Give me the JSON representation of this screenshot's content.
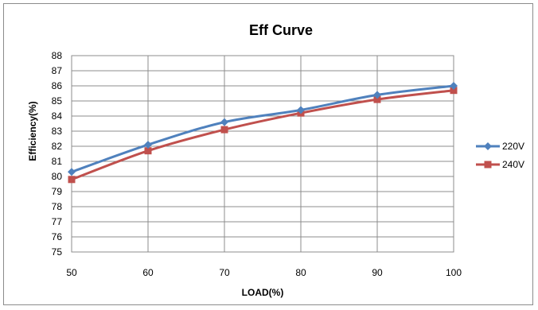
{
  "chart_data": {
    "type": "line",
    "title": "Eff Curve",
    "xlabel": "LOAD(%)",
    "ylabel": "Efficiency(%)",
    "x": [
      50,
      60,
      70,
      80,
      90,
      100
    ],
    "xlim": [
      50,
      100
    ],
    "ylim": [
      75,
      88
    ],
    "x_ticks": [
      50,
      60,
      70,
      80,
      90,
      100
    ],
    "y_ticks": [
      75,
      76,
      77,
      78,
      79,
      80,
      81,
      82,
      83,
      84,
      85,
      86,
      87,
      88
    ],
    "grid": true,
    "legend_position": "right",
    "series": [
      {
        "name": "220V",
        "values": [
          80.3,
          82.1,
          83.6,
          84.4,
          85.4,
          86.0
        ],
        "color": "#4f81bd",
        "marker": "diamond"
      },
      {
        "name": "240V",
        "values": [
          79.8,
          81.7,
          83.1,
          84.2,
          85.1,
          85.7
        ],
        "color": "#c0504d",
        "marker": "square"
      }
    ]
  }
}
